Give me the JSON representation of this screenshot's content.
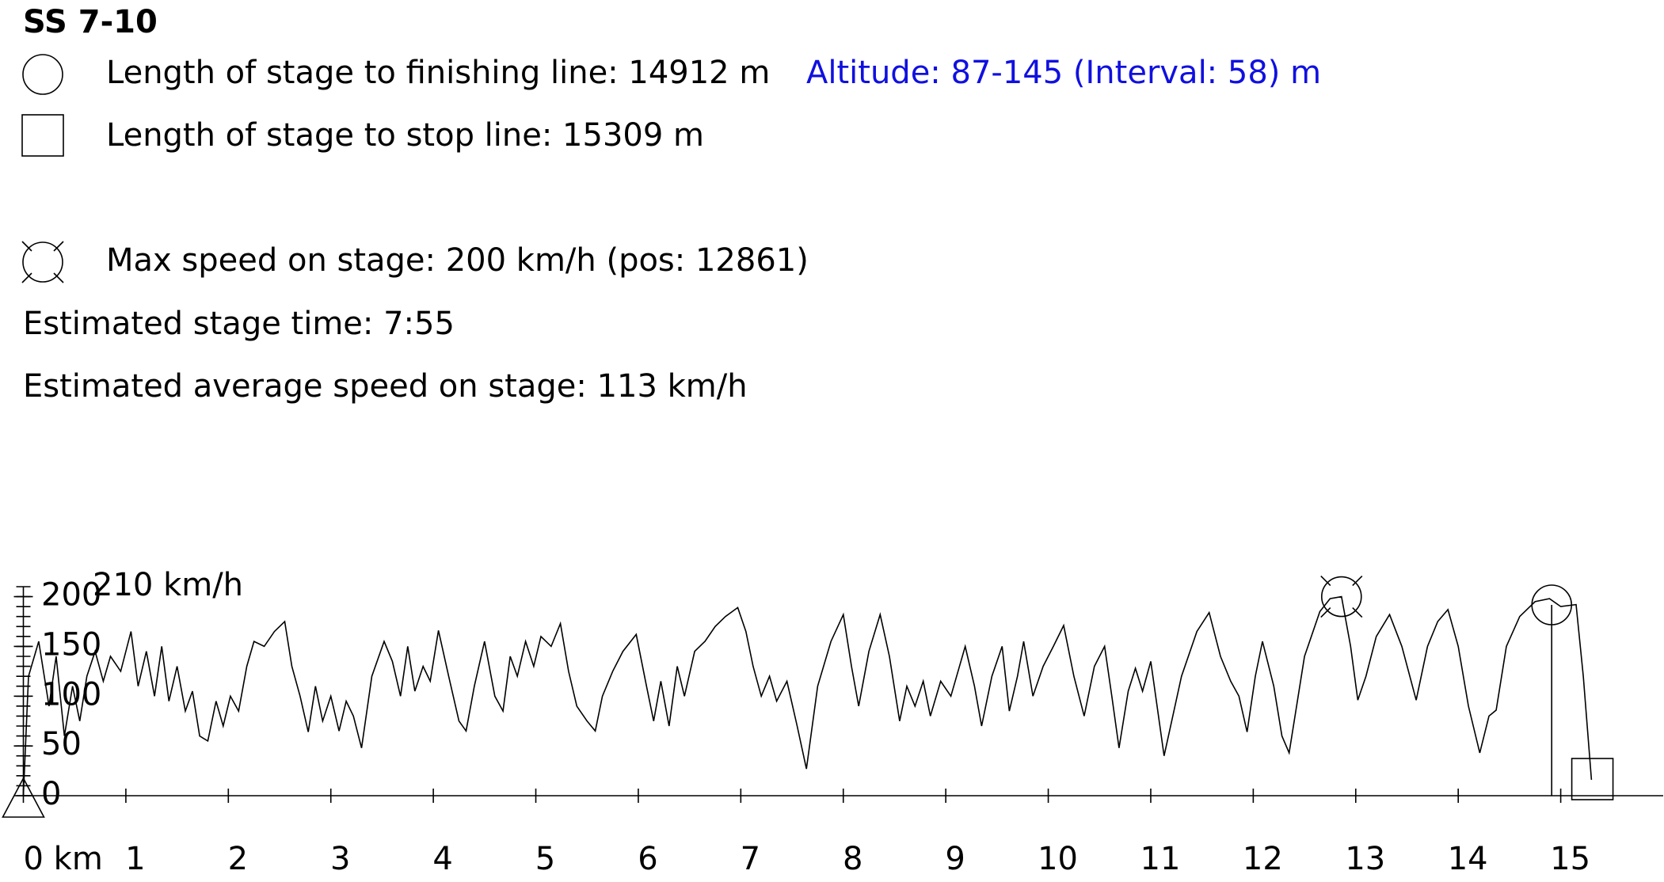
{
  "chart_data": {
    "type": "line",
    "title": "SS 7-10",
    "annotations": [
      "Length of stage to finishing line: 14912 m",
      "Altitude: 87-145 (Interval: 58) m",
      "Length of stage to stop line: 15309 m",
      "Max speed on stage: 200 km/h (pos: 12861)",
      "Estimated stage time: 7:55",
      "Estimated average speed on stage: 113 km/h"
    ],
    "y_label": "210 km/h",
    "xlim": [
      0,
      16
    ],
    "ylim": [
      0,
      210
    ],
    "xticks": [
      {
        "value": 0,
        "label": "0 km"
      },
      1,
      2,
      3,
      4,
      5,
      6,
      7,
      8,
      9,
      10,
      11,
      12,
      13,
      14,
      15
    ],
    "yticks": [
      0,
      50,
      100,
      150,
      200
    ],
    "yminorticks": [
      0,
      10,
      20,
      30,
      40,
      50,
      60,
      70,
      80,
      90,
      100,
      110,
      120,
      130,
      140,
      150,
      160,
      170,
      180,
      190,
      200,
      210
    ],
    "markers": {
      "finish": 14.912,
      "stop": 15.309,
      "max_speed": {
        "x": 12.861,
        "y": 200
      }
    },
    "series": [
      {
        "color": "#000000",
        "x": [
          0,
          0.05,
          0.15,
          0.25,
          0.32,
          0.4,
          0.48,
          0.55,
          0.62,
          0.7,
          0.78,
          0.85,
          0.95,
          1.05,
          1.12,
          1.2,
          1.28,
          1.35,
          1.42,
          1.5,
          1.58,
          1.65,
          1.72,
          1.8,
          1.88,
          1.95,
          2.02,
          2.1,
          2.18,
          2.25,
          2.35,
          2.45,
          2.55,
          2.62,
          2.7,
          2.78,
          2.85,
          2.92,
          3.0,
          3.08,
          3.15,
          3.22,
          3.3,
          3.4,
          3.52,
          3.6,
          3.68,
          3.75,
          3.82,
          3.9,
          3.97,
          4.05,
          4.15,
          4.25,
          4.32,
          4.4,
          4.5,
          4.6,
          4.68,
          4.75,
          4.82,
          4.9,
          4.98,
          5.05,
          5.15,
          5.24,
          5.32,
          5.4,
          5.5,
          5.58,
          5.65,
          5.75,
          5.85,
          5.98,
          6.08,
          6.15,
          6.22,
          6.3,
          6.38,
          6.45,
          6.55,
          6.65,
          6.75,
          6.85,
          6.97,
          7.05,
          7.12,
          7.2,
          7.28,
          7.35,
          7.45,
          7.55,
          7.64,
          7.75,
          7.88,
          8.0,
          8.08,
          8.15,
          8.25,
          8.36,
          8.45,
          8.55,
          8.62,
          8.7,
          8.78,
          8.85,
          8.95,
          9.05,
          9.19,
          9.28,
          9.35,
          9.45,
          9.55,
          9.62,
          9.7,
          9.76,
          9.85,
          9.95,
          10.05,
          10.15,
          10.25,
          10.35,
          10.45,
          10.55,
          10.62,
          10.69,
          10.78,
          10.85,
          10.92,
          11.0,
          11.13,
          11.3,
          11.45,
          11.57,
          11.68,
          11.78,
          11.86,
          11.94,
          12.02,
          12.09,
          12.2,
          12.28,
          12.35,
          12.5,
          12.65,
          12.75,
          12.861,
          12.95,
          13.02,
          13.1,
          13.2,
          13.33,
          13.45,
          13.59,
          13.7,
          13.8,
          13.9,
          14.0,
          14.1,
          14.21,
          14.3,
          14.37,
          14.47,
          14.6,
          14.75,
          14.89,
          15.0,
          15.15,
          15.22,
          15.3
        ],
        "values": [
          0,
          120,
          155,
          90,
          140,
          60,
          110,
          75,
          120,
          145,
          115,
          140,
          125,
          165,
          110,
          145,
          100,
          150,
          95,
          130,
          85,
          105,
          60,
          55,
          95,
          70,
          100,
          85,
          130,
          155,
          150,
          165,
          175,
          130,
          100,
          64,
          110,
          75,
          100,
          65,
          95,
          80,
          48,
          120,
          155,
          135,
          100,
          150,
          105,
          130,
          115,
          166,
          120,
          75,
          65,
          110,
          155,
          100,
          85,
          140,
          120,
          155,
          130,
          160,
          150,
          173,
          125,
          90,
          75,
          65,
          100,
          125,
          145,
          162,
          110,
          75,
          115,
          70,
          130,
          100,
          145,
          155,
          170,
          180,
          189,
          165,
          130,
          100,
          120,
          95,
          115,
          70,
          27,
          110,
          155,
          182,
          130,
          90,
          145,
          182,
          140,
          75,
          110,
          90,
          115,
          80,
          115,
          100,
          150,
          110,
          70,
          120,
          150,
          85,
          120,
          155,
          100,
          130,
          150,
          171,
          120,
          80,
          130,
          150,
          100,
          48,
          105,
          128,
          105,
          135,
          40,
          120,
          165,
          184,
          140,
          115,
          100,
          64,
          120,
          155,
          110,
          60,
          43,
          140,
          185,
          198,
          200,
          150,
          96,
          120,
          160,
          182,
          150,
          96,
          150,
          175,
          187,
          150,
          90,
          43,
          80,
          86,
          150,
          180,
          195,
          198,
          190,
          192,
          120,
          16
        ]
      }
    ]
  }
}
